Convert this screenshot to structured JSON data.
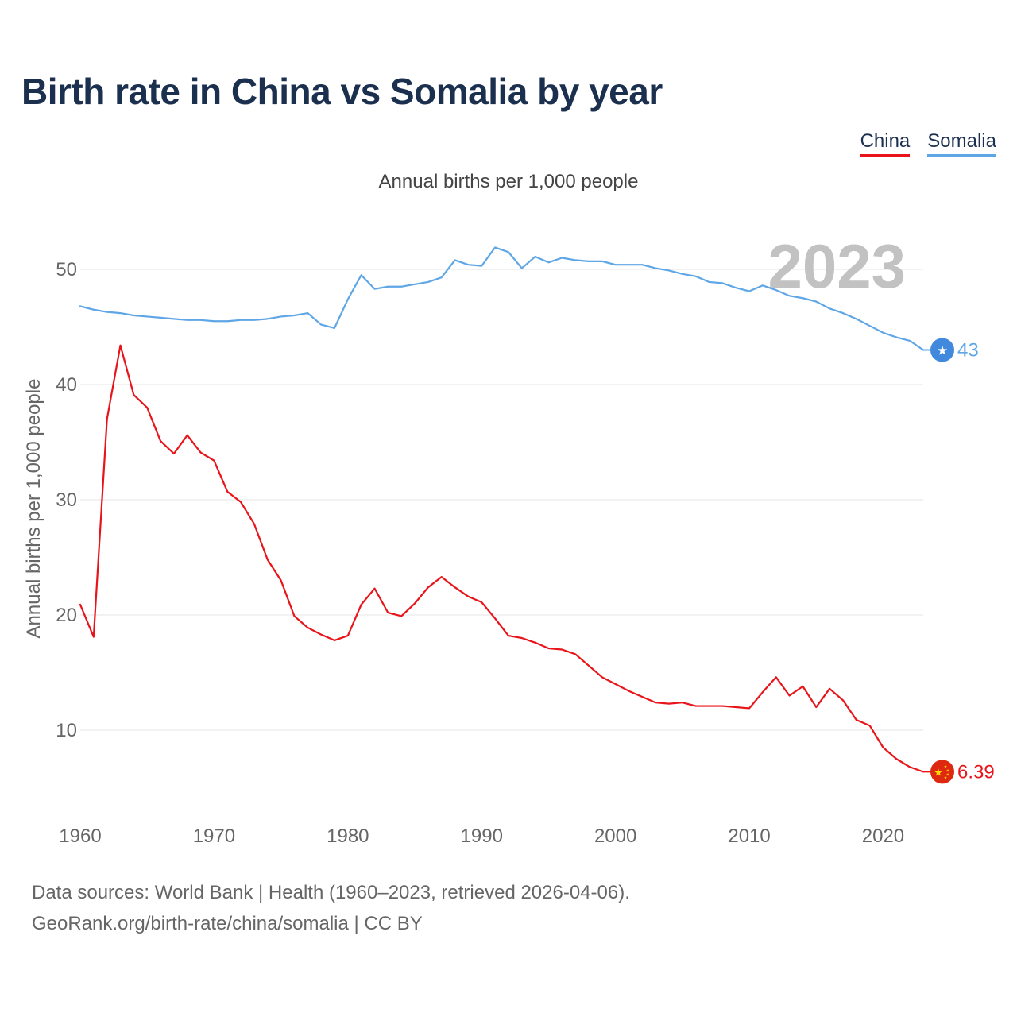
{
  "title": "Birth rate in China vs Somalia by year",
  "legend": {
    "china": "China",
    "somalia": "Somalia"
  },
  "subtitle": "Annual births per 1,000 people",
  "year_watermark": "2023",
  "source_line1": "Data sources: World Bank | Health (1960–2023, retrieved 2026-04-06).",
  "source_line2": "GeoRank.org/birth-rate/china/somalia | CC BY",
  "colors": {
    "china": "#e8141a",
    "somalia": "#5ea6e6",
    "grid": "#e6e6e6",
    "axis_text": "#666666"
  },
  "chart_data": {
    "type": "line",
    "title": "Birth rate in China vs Somalia by year",
    "xlabel": "",
    "ylabel": "Annual births per 1,000 people",
    "xlim": [
      1960,
      2023
    ],
    "ylim": [
      3,
      55
    ],
    "x_ticks": [
      1960,
      1970,
      1980,
      1990,
      2000,
      2010,
      2020
    ],
    "y_ticks": [
      10,
      20,
      30,
      40,
      50
    ],
    "grid": true,
    "legend_position": "top-right",
    "x": [
      1960,
      1961,
      1962,
      1963,
      1964,
      1965,
      1966,
      1967,
      1968,
      1969,
      1970,
      1971,
      1972,
      1973,
      1974,
      1975,
      1976,
      1977,
      1978,
      1979,
      1980,
      1981,
      1982,
      1983,
      1984,
      1985,
      1986,
      1987,
      1988,
      1989,
      1990,
      1991,
      1992,
      1993,
      1994,
      1995,
      1996,
      1997,
      1998,
      1999,
      2000,
      2001,
      2002,
      2003,
      2004,
      2005,
      2006,
      2007,
      2008,
      2009,
      2010,
      2011,
      2012,
      2013,
      2014,
      2015,
      2016,
      2017,
      2018,
      2019,
      2020,
      2021,
      2022,
      2023
    ],
    "series": [
      {
        "name": "China",
        "end_label": "6.39",
        "values": [
          20.9,
          18.1,
          37.0,
          43.4,
          39.1,
          38.0,
          35.1,
          34.0,
          35.6,
          34.1,
          33.4,
          30.7,
          29.8,
          27.9,
          24.8,
          23.0,
          19.9,
          18.9,
          18.3,
          17.8,
          18.2,
          20.9,
          22.3,
          20.2,
          19.9,
          21.0,
          22.4,
          23.3,
          22.4,
          21.6,
          21.1,
          19.7,
          18.2,
          18.0,
          17.6,
          17.1,
          17.0,
          16.6,
          15.6,
          14.6,
          14.0,
          13.4,
          12.9,
          12.4,
          12.3,
          12.4,
          12.1,
          12.1,
          12.1,
          12.0,
          11.9,
          13.3,
          14.6,
          13.0,
          13.8,
          12.0,
          13.6,
          12.6,
          10.9,
          10.4,
          8.5,
          7.5,
          6.8,
          6.39
        ]
      },
      {
        "name": "Somalia",
        "end_label": "43",
        "values": [
          46.8,
          46.5,
          46.3,
          46.2,
          46.0,
          45.9,
          45.8,
          45.7,
          45.6,
          45.6,
          45.5,
          45.5,
          45.6,
          45.6,
          45.7,
          45.9,
          46.0,
          46.2,
          45.2,
          44.9,
          47.4,
          49.5,
          48.3,
          48.5,
          48.5,
          48.7,
          48.9,
          49.3,
          50.8,
          50.4,
          50.3,
          51.9,
          51.5,
          50.1,
          51.1,
          50.6,
          51.0,
          50.8,
          50.7,
          50.7,
          50.4,
          50.4,
          50.4,
          50.1,
          49.9,
          49.6,
          49.4,
          48.9,
          48.8,
          48.4,
          48.1,
          48.6,
          48.2,
          47.7,
          47.5,
          47.2,
          46.6,
          46.2,
          45.7,
          45.1,
          44.5,
          44.1,
          43.8,
          43.0
        ]
      }
    ]
  }
}
